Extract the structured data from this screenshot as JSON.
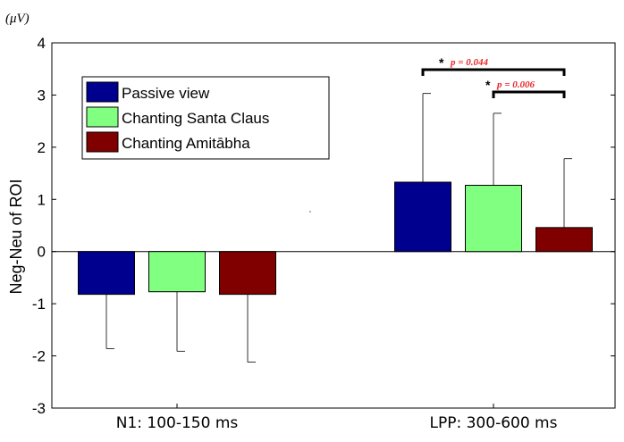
{
  "chart_data": {
    "type": "bar",
    "ylabel": "Neg-Neu of ROI",
    "unit": "(μV)",
    "ylim": [
      -3,
      4
    ],
    "yticks": [
      "4",
      "3",
      "2",
      "1",
      "0",
      "-1",
      "-2",
      "-3"
    ],
    "ytick_values": [
      4,
      3,
      2,
      1,
      0,
      -1,
      -2,
      -3
    ],
    "categories": [
      "N1: 100-150 ms",
      "LPP: 300-600 ms"
    ],
    "series": [
      {
        "name": "Passive view",
        "color": "#00008f",
        "values": [
          -0.82,
          1.33
        ],
        "errors": [
          1.04,
          1.7
        ]
      },
      {
        "name": "Chanting Santa Claus",
        "color": "#80ff80",
        "values": [
          -0.77,
          1.27
        ],
        "errors": [
          1.14,
          1.38
        ]
      },
      {
        "name": "Chanting Amitābha",
        "color": "#800000",
        "values": [
          -0.82,
          0.46
        ],
        "errors": [
          1.3,
          1.32
        ]
      }
    ],
    "legend_position": "top-left",
    "annotations": [
      {
        "star": "*",
        "text": "p  =  0.044",
        "from_series": 0,
        "to_series": 2,
        "category": 1
      },
      {
        "star": "*",
        "text": "p  =  0.006",
        "from_series": 1,
        "to_series": 2,
        "category": 1
      }
    ]
  }
}
